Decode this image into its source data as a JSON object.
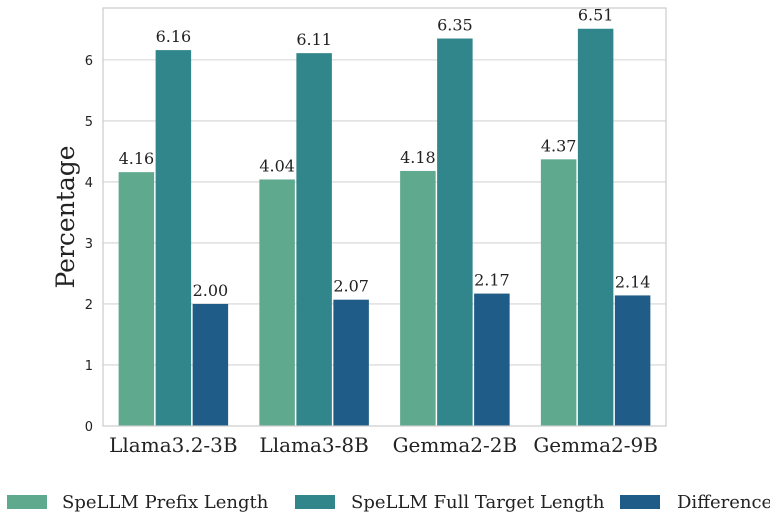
{
  "chart_data": {
    "type": "bar",
    "categories": [
      "Llama3.2-3B",
      "Llama3-8B",
      "Gemma2-2B",
      "Gemma2-9B"
    ],
    "series": [
      {
        "name": "SpeLLM Prefix Length",
        "values": [
          4.16,
          4.04,
          4.18,
          4.37
        ],
        "color": "#5fa98e"
      },
      {
        "name": "SpeLLM Full Target Length",
        "values": [
          6.16,
          6.11,
          6.35,
          6.51
        ],
        "color": "#30868b"
      },
      {
        "name": "Difference",
        "values": [
          2.0,
          2.07,
          2.17,
          2.14
        ],
        "color": "#1f5c87"
      }
    ],
    "data_labels": [
      [
        "4.16",
        "4.04",
        "4.18",
        "4.37"
      ],
      [
        "6.16",
        "6.11",
        "6.35",
        "6.51"
      ],
      [
        "2.00",
        "2.07",
        "2.17",
        "2.14"
      ]
    ],
    "ylabel": "Percentage",
    "xlabel": "",
    "title": "",
    "ylim": [
      0,
      6.85
    ],
    "yticks": [
      0,
      1,
      2,
      3,
      4,
      5,
      6
    ],
    "grid": true,
    "legend_position": "bottom"
  }
}
